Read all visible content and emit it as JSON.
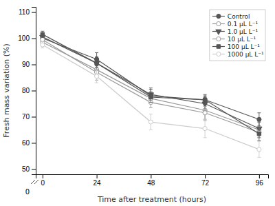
{
  "chart_data": {
    "type": "line",
    "x": [
      0,
      24,
      48,
      72,
      96
    ],
    "series": [
      {
        "name": "Control",
        "color": "#555555",
        "marker": "circle",
        "line_style": "solid",
        "values": [
          100.0,
          92.0,
          78.0,
          76.5,
          69.0
        ],
        "errors": [
          0.8,
          2.5,
          2.5,
          2.0,
          2.5
        ]
      },
      {
        "name": "0.1 μL L⁻¹",
        "color": "#999999",
        "marker": "circle-open",
        "line_style": "solid",
        "values": [
          98.5,
          88.0,
          77.0,
          72.5,
          65.0
        ],
        "errors": [
          1.0,
          2.0,
          2.0,
          4.0,
          3.0
        ]
      },
      {
        "name": "1.0 μL L⁻¹",
        "color": "#555555",
        "marker": "triangle-down",
        "line_style": "solid",
        "values": [
          100.5,
          90.5,
          78.5,
          75.0,
          65.5
        ],
        "errors": [
          0.8,
          2.5,
          2.5,
          2.5,
          2.5
        ]
      },
      {
        "name": "10 μL L⁻¹",
        "color": "#999999",
        "marker": "circle-open",
        "line_style": "solid",
        "values": [
          99.5,
          87.0,
          75.5,
          71.5,
          64.0
        ],
        "errors": [
          0.8,
          3.0,
          2.0,
          2.5,
          2.0
        ]
      },
      {
        "name": "100 μL L⁻¹",
        "color": "#555555",
        "marker": "square",
        "line_style": "solid",
        "values": [
          101.5,
          90.5,
          77.5,
          76.5,
          63.5
        ],
        "errors": [
          1.2,
          1.5,
          2.0,
          1.5,
          2.5
        ]
      },
      {
        "name": "1000 μL L⁻¹",
        "color": "#cccccc",
        "marker": "circle-open",
        "line_style": "solid",
        "values": [
          97.5,
          85.5,
          68.0,
          65.5,
          57.5
        ],
        "errors": [
          1.2,
          2.5,
          3.0,
          3.5,
          3.0
        ]
      }
    ],
    "x_label": "Time after treatment (hours)",
    "y_label": "Fresh mass variation (%)",
    "xlim": [
      -3,
      100
    ],
    "ylim": [
      48,
      112
    ],
    "xticks": [
      0,
      24,
      48,
      72,
      96
    ],
    "yticks": [
      50,
      60,
      70,
      80,
      90,
      100,
      110
    ],
    "annotations": [
      {
        "text": "0"
      }
    ],
    "grid": false,
    "legend": "upper right"
  }
}
